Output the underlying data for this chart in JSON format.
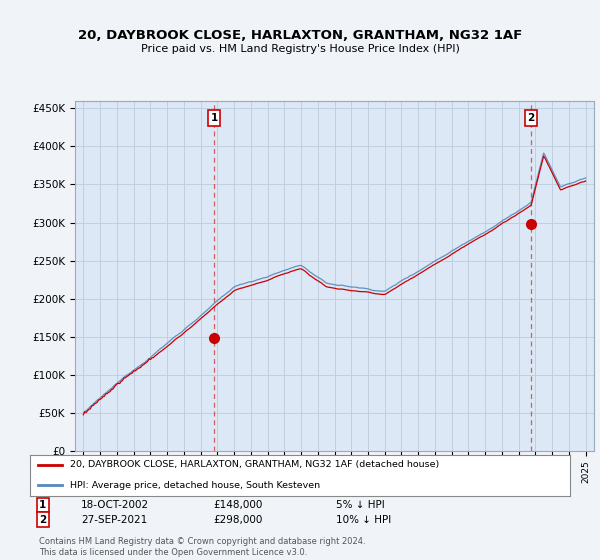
{
  "title": "20, DAYBROOK CLOSE, HARLAXTON, GRANTHAM, NG32 1AF",
  "subtitle": "Price paid vs. HM Land Registry's House Price Index (HPI)",
  "red_label": "20, DAYBROOK CLOSE, HARLAXTON, GRANTHAM, NG32 1AF (detached house)",
  "blue_label": "HPI: Average price, detached house, South Kesteven",
  "annotation1_date": "18-OCT-2002",
  "annotation1_price": "£148,000",
  "annotation1_text": "5% ↓ HPI",
  "annotation2_date": "27-SEP-2021",
  "annotation2_price": "£298,000",
  "annotation2_text": "10% ↓ HPI",
  "footer": "Contains HM Land Registry data © Crown copyright and database right 2024.\nThis data is licensed under the Open Government Licence v3.0.",
  "background_color": "#f0f4f8",
  "plot_bg_color": "#dce8f5",
  "grid_color": "#bbccdd",
  "red_color": "#cc0000",
  "blue_color": "#5588bb",
  "ylim": [
    0,
    460000
  ],
  "yticks": [
    0,
    50000,
    100000,
    150000,
    200000,
    250000,
    300000,
    350000,
    400000,
    450000
  ],
  "ytick_labels": [
    "£0",
    "£50K",
    "£100K",
    "£150K",
    "£200K",
    "£250K",
    "£300K",
    "£350K",
    "£400K",
    "£450K"
  ],
  "sale1_x": 2002.8,
  "sale1_y": 148000,
  "sale2_x": 2021.75,
  "sale2_y": 298000,
  "xmin": 1994.5,
  "xmax": 2025.5
}
